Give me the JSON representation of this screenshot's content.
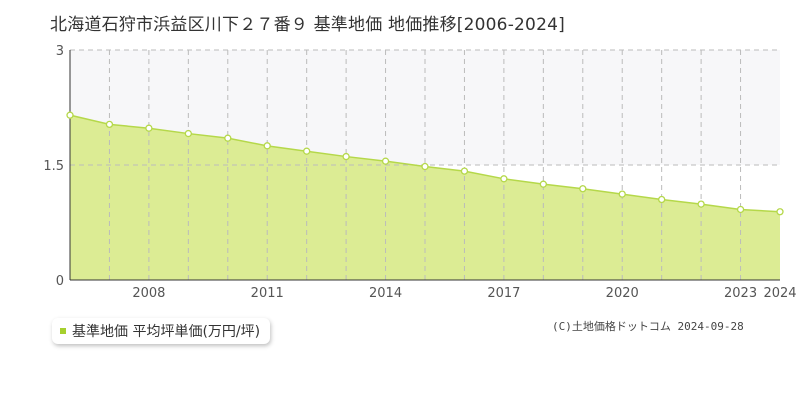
{
  "title": "北海道石狩市浜益区川下２７番９ 基準地価 地価推移[2006-2024]",
  "legend": {
    "label": "基準地価 平均坪単価(万円/坪)"
  },
  "copyright": "(C)土地価格ドットコム 2024-09-28",
  "colors": {
    "fill": "#dcec94",
    "line": "#b5d84a",
    "marker_stroke": "#b5d84a",
    "grid": "#cccccc",
    "legend_swatch": "#a6d02e",
    "upper_band": "#f7f7f9"
  },
  "chart_data": {
    "type": "area",
    "title": "",
    "xlabel": "",
    "ylabel": "",
    "x": [
      2006,
      2007,
      2008,
      2009,
      2010,
      2011,
      2012,
      2013,
      2014,
      2015,
      2016,
      2017,
      2018,
      2019,
      2020,
      2021,
      2022,
      2023,
      2024
    ],
    "series": [
      {
        "name": "基準地価 平均坪単価(万円/坪)",
        "values": [
          2.15,
          2.03,
          1.98,
          1.91,
          1.85,
          1.75,
          1.68,
          1.61,
          1.55,
          1.48,
          1.42,
          1.32,
          1.25,
          1.19,
          1.12,
          1.05,
          0.99,
          0.92,
          0.89
        ]
      }
    ],
    "xlim": [
      2006,
      2024
    ],
    "ylim": [
      0,
      3
    ],
    "y_ticks": [
      "0",
      "1.5",
      "3"
    ],
    "x_tick_labels": [
      "2008",
      "2011",
      "2014",
      "2017",
      "2020",
      "2023",
      "2024"
    ],
    "grid": true,
    "legend_position": "bottom-left"
  }
}
